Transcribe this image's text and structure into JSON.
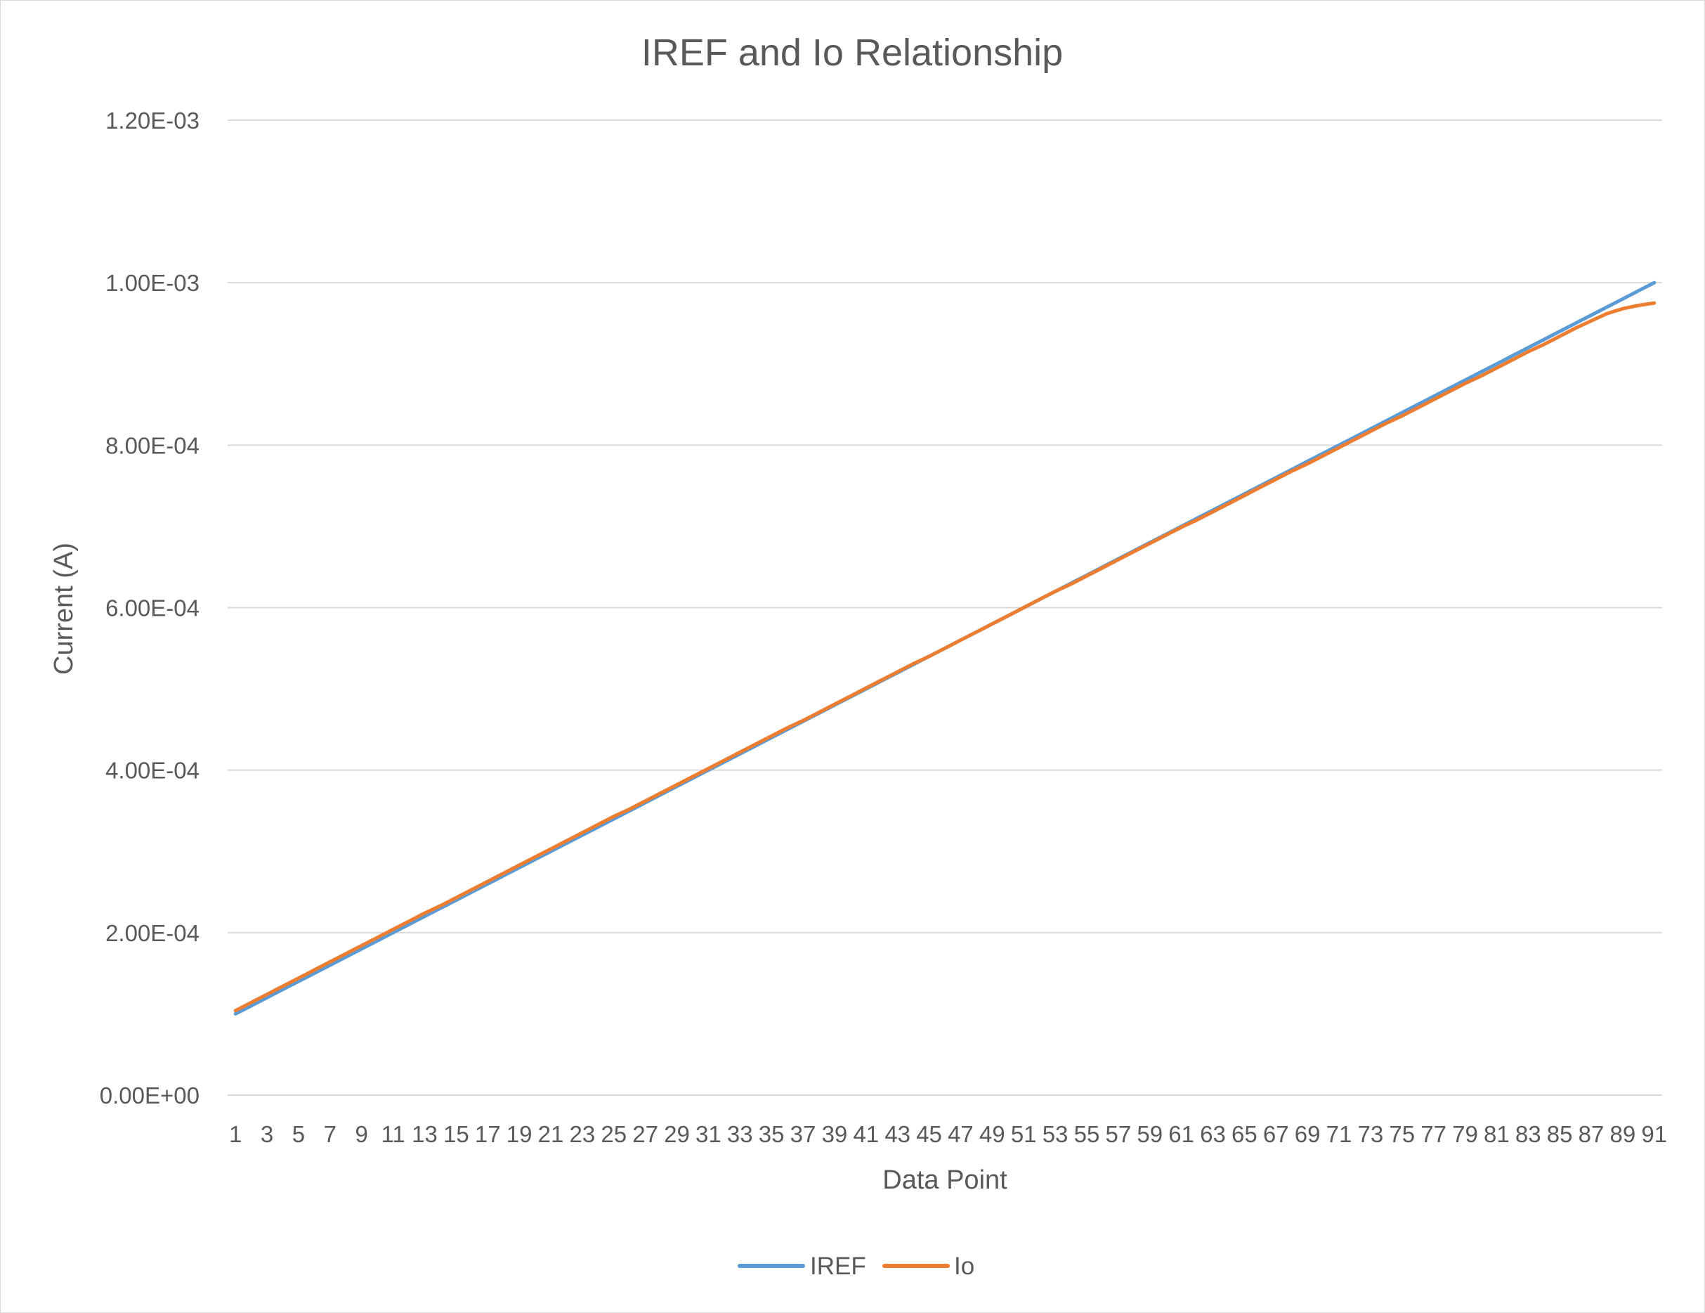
{
  "chart_data": {
    "type": "line",
    "title": "IREF and Io Relationship",
    "xlabel": "Data Point",
    "ylabel": "Current (A)",
    "categories": [
      1,
      2,
      3,
      4,
      5,
      6,
      7,
      8,
      9,
      10,
      11,
      12,
      13,
      14,
      15,
      16,
      17,
      18,
      19,
      20,
      21,
      22,
      23,
      24,
      25,
      26,
      27,
      28,
      29,
      30,
      31,
      32,
      33,
      34,
      35,
      36,
      37,
      38,
      39,
      40,
      41,
      42,
      43,
      44,
      45,
      46,
      47,
      48,
      49,
      50,
      51,
      52,
      53,
      54,
      55,
      56,
      57,
      58,
      59,
      60,
      61,
      62,
      63,
      64,
      65,
      66,
      67,
      68,
      69,
      70,
      71,
      72,
      73,
      74,
      75,
      76,
      77,
      78,
      79,
      80,
      81,
      82,
      83,
      84,
      85,
      86,
      87,
      88,
      89,
      90,
      91
    ],
    "x_tick_labels": [
      "1",
      "3",
      "5",
      "7",
      "9",
      "11",
      "13",
      "15",
      "17",
      "19",
      "21",
      "23",
      "25",
      "27",
      "29",
      "31",
      "33",
      "35",
      "37",
      "39",
      "41",
      "43",
      "45",
      "47",
      "49",
      "51",
      "53",
      "55",
      "57",
      "59",
      "61",
      "63",
      "65",
      "67",
      "69",
      "71",
      "73",
      "75",
      "77",
      "79",
      "81",
      "83",
      "85",
      "87",
      "89",
      "91"
    ],
    "y_tick_labels": [
      "0.00E+00",
      "2.00E-04",
      "4.00E-04",
      "6.00E-04",
      "8.00E-04",
      "1.00E-03",
      "1.20E-03"
    ],
    "ylim": [
      0,
      0.0012
    ],
    "y_ticks": [
      0,
      0.0002,
      0.0004,
      0.0006,
      0.0008,
      0.001,
      0.0012
    ],
    "grid": true,
    "legend_position": "bottom",
    "series": [
      {
        "name": "IREF",
        "color": "#5b9bd5",
        "values": [
          0.0001,
          0.00011,
          0.00012,
          0.00013,
          0.00014,
          0.00015,
          0.00016,
          0.00017,
          0.00018,
          0.00019,
          0.0002,
          0.00021,
          0.00022,
          0.00023,
          0.00024,
          0.00025,
          0.00026,
          0.00027,
          0.00028,
          0.00029,
          0.0003,
          0.00031,
          0.00032,
          0.00033,
          0.00034,
          0.00035,
          0.00036,
          0.00037,
          0.00038,
          0.00039,
          0.0004,
          0.00041,
          0.00042,
          0.00043,
          0.00044,
          0.00045,
          0.00046,
          0.00047,
          0.00048,
          0.00049,
          0.0005,
          0.00051,
          0.00052,
          0.00053,
          0.00054,
          0.00055,
          0.00056,
          0.00057,
          0.00058,
          0.00059,
          0.0006,
          0.00061,
          0.00062,
          0.00063,
          0.00064,
          0.00065,
          0.00066,
          0.00067,
          0.00068,
          0.00069,
          0.0007,
          0.00071,
          0.00072,
          0.00073,
          0.00074,
          0.00075,
          0.00076,
          0.00077,
          0.00078,
          0.00079,
          0.0008,
          0.00081,
          0.00082,
          0.00083,
          0.00084,
          0.00085,
          0.00086,
          0.00087,
          0.00088,
          0.00089,
          0.0009,
          0.00091,
          0.00092,
          0.00093,
          0.00094,
          0.00095,
          0.00096,
          0.00097,
          0.00098,
          0.00099,
          0.001
        ]
      },
      {
        "name": "Io",
        "color": "#ed7d31",
        "values": [
          0.000104,
          0.000114,
          0.000124,
          0.000134,
          0.000144,
          0.000154,
          0.000164,
          0.000174,
          0.000184,
          0.000194,
          0.000204,
          0.000214,
          0.000224,
          0.000233,
          0.000243,
          0.000253,
          0.000263,
          0.000273,
          0.000283,
          0.000293,
          0.000303,
          0.000313,
          0.000323,
          0.000333,
          0.000343,
          0.000352,
          0.000362,
          0.000372,
          0.000382,
          0.000392,
          0.000402,
          0.000412,
          0.000422,
          0.000432,
          0.000442,
          0.000452,
          0.000461,
          0.000471,
          0.000481,
          0.000491,
          0.000501,
          0.000511,
          0.000521,
          0.000531,
          0.00054,
          0.00055,
          0.00056,
          0.00057,
          0.00058,
          0.00059,
          0.0006,
          0.00061,
          0.00062,
          0.000629,
          0.000639,
          0.000649,
          0.000659,
          0.000669,
          0.000679,
          0.000689,
          0.000699,
          0.000708,
          0.000718,
          0.000728,
          0.000738,
          0.000748,
          0.000758,
          0.000768,
          0.000777,
          0.000787,
          0.000797,
          0.000807,
          0.000817,
          0.000827,
          0.000836,
          0.000846,
          0.000856,
          0.000866,
          0.000876,
          0.000885,
          0.000895,
          0.000905,
          0.000915,
          0.000924,
          0.000934,
          0.000944,
          0.000953,
          0.000962,
          0.000968,
          0.000972,
          0.000975
        ]
      }
    ]
  }
}
